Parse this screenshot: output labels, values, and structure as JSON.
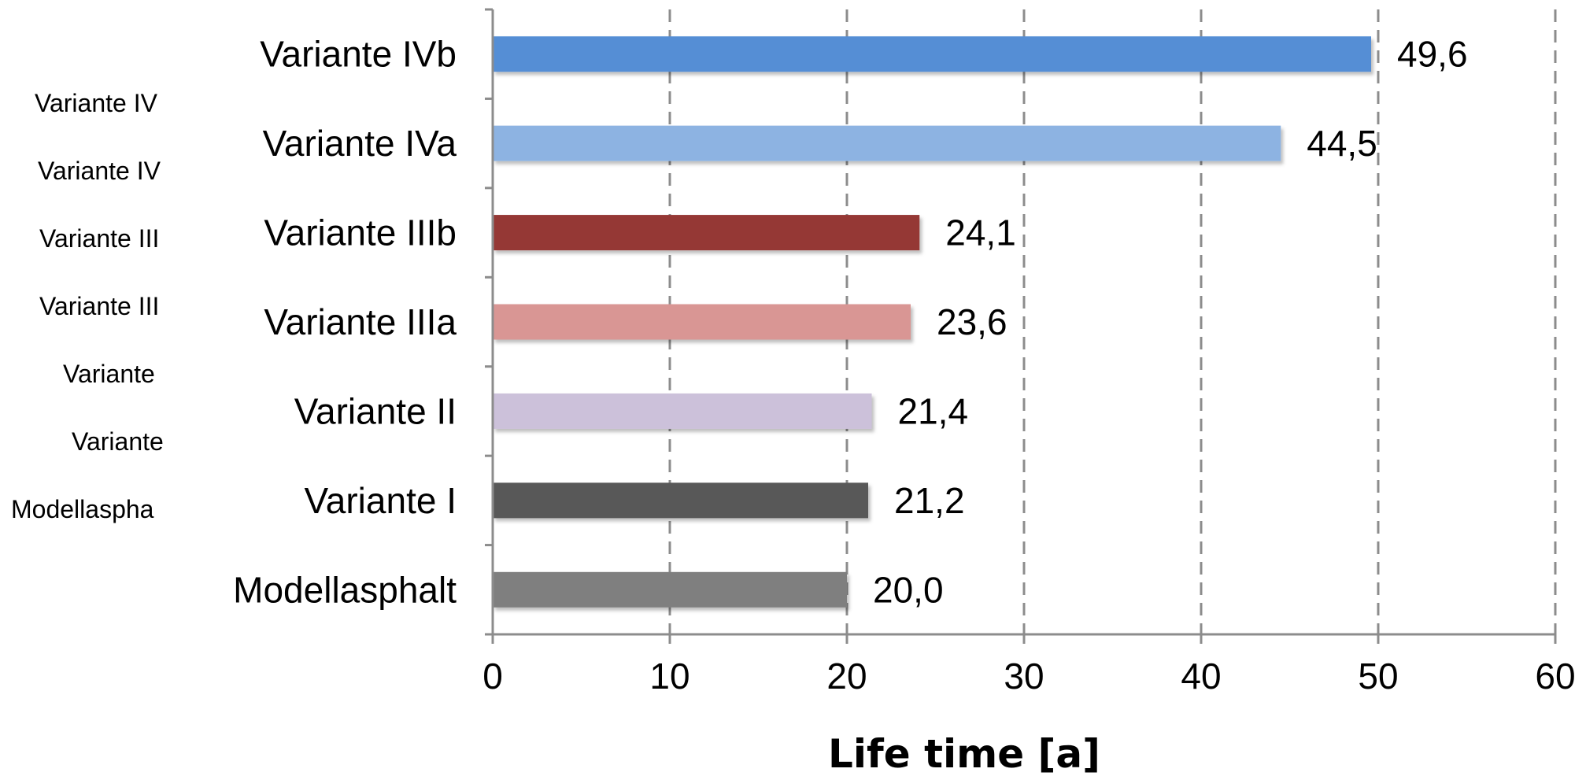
{
  "chart_data": {
    "type": "bar",
    "orientation": "horizontal",
    "categories": [
      "Variante IVb",
      "Variante IVa",
      "Variante IIIb",
      "Variante IIIa",
      "Variante II",
      "Variante I",
      "Modellasphalt"
    ],
    "values": [
      49.6,
      44.5,
      24.1,
      23.6,
      21.4,
      21.2,
      20.0
    ],
    "data_labels": [
      "49,6",
      "44,5",
      "24,1",
      "23,6",
      "21,4",
      "21,2",
      "20,0"
    ],
    "colors": [
      "#558ed5",
      "#8db3e2",
      "#953735",
      "#d99694",
      "#ccc1da",
      "#595959",
      "#7f7f7f"
    ],
    "xlabel": "Life time [a]",
    "xlim": [
      0,
      60
    ],
    "xticks": [
      0,
      10,
      20,
      30,
      40,
      50,
      60
    ],
    "xtick_labels": [
      "0",
      "10",
      "20",
      "30",
      "40",
      "50",
      "60"
    ],
    "grid": "vertical dashed",
    "clipped_side_labels": [
      "Variante IV",
      "Variante IV",
      "Variante III",
      "Variante III",
      "Variante",
      "Variante",
      "Modellaspha"
    ]
  }
}
